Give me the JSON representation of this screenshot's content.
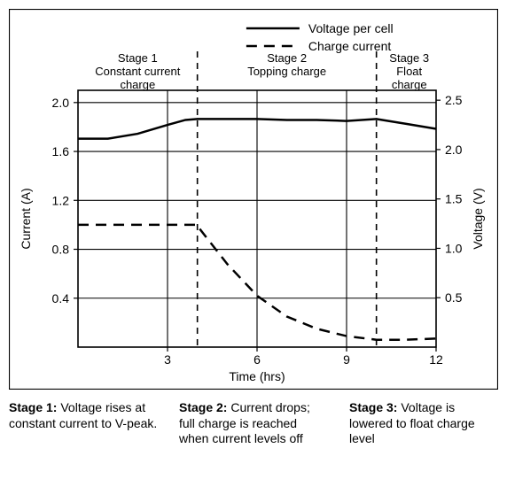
{
  "background_color": "#ffffff",
  "axis_color": "#000000",
  "grid_color": "#000000",
  "chart_border_color": "#000000",
  "text_color": "#000000",
  "font_family": "Arial, Helvetica, sans-serif",
  "legend": {
    "voltage_label": "Voltage per cell",
    "current_label": "Charge current",
    "voltage_swatch": "solid",
    "current_swatch": "dashed",
    "fontsize": 14
  },
  "x_axis": {
    "label": "Time (hrs)",
    "min": 0,
    "max": 12,
    "ticks": [
      3,
      6,
      9,
      12
    ],
    "grid_at": [
      3,
      6,
      9
    ],
    "label_fontsize": 14,
    "tick_fontsize": 14
  },
  "y_left": {
    "label": "Current (A)",
    "min": 0,
    "max": 2.1,
    "ticks": [
      0.4,
      0.8,
      1.2,
      1.6,
      2.0
    ],
    "grid_at": [
      0.4,
      0.8,
      1.2,
      1.6,
      2.0
    ],
    "label_fontsize": 14,
    "tick_fontsize": 14
  },
  "y_right": {
    "label": "Voltage (V)",
    "min": 0,
    "max": 2.6,
    "ticks": [
      0.5,
      1.0,
      1.5,
      2.0,
      2.5
    ],
    "label_fontsize": 14,
    "tick_fontsize": 14
  },
  "stage_dividers": [
    4,
    10
  ],
  "stage_labels": [
    {
      "title": "Stage 1",
      "sub": "Constant current",
      "sub2": "charge",
      "x_center": 2.0
    },
    {
      "title": "Stage 2",
      "sub": "Topping charge",
      "sub2": "",
      "x_center": 7.0
    },
    {
      "title": "Stage 3",
      "sub": "Float",
      "sub2": "charge",
      "x_center": 11.1
    }
  ],
  "stage_label_fontsize": 13,
  "voltage_series": {
    "stroke": "#000000",
    "stroke_width": 2.5,
    "points": [
      [
        0.0,
        2.11
      ],
      [
        1.0,
        2.11
      ],
      [
        2.0,
        2.16
      ],
      [
        3.0,
        2.25
      ],
      [
        3.6,
        2.3
      ],
      [
        4.0,
        2.31
      ],
      [
        5.0,
        2.31
      ],
      [
        6.0,
        2.31
      ],
      [
        7.0,
        2.3
      ],
      [
        8.0,
        2.3
      ],
      [
        9.0,
        2.29
      ],
      [
        10.0,
        2.31
      ],
      [
        10.2,
        2.3
      ],
      [
        11.0,
        2.26
      ],
      [
        12.0,
        2.21
      ]
    ]
  },
  "current_series": {
    "stroke": "#000000",
    "stroke_width": 2.5,
    "dash": "12 8",
    "points": [
      [
        0.0,
        1.0
      ],
      [
        3.6,
        1.0
      ],
      [
        4.0,
        1.0
      ],
      [
        4.1,
        0.96
      ],
      [
        5.0,
        0.68
      ],
      [
        6.0,
        0.42
      ],
      [
        7.0,
        0.25
      ],
      [
        8.0,
        0.15
      ],
      [
        9.0,
        0.09
      ],
      [
        10.0,
        0.06
      ],
      [
        11.0,
        0.06
      ],
      [
        12.0,
        0.07
      ]
    ]
  },
  "captions": [
    {
      "title": "Stage 1:",
      "text": "Voltage rises at constant current to V-peak."
    },
    {
      "title": "Stage 2:",
      "text": "Current drops; full charge is reached when current levels off"
    },
    {
      "title": "Stage 3:",
      "text": "Voltage is lowered to float charge level"
    }
  ],
  "caption_fontsize": 14
}
